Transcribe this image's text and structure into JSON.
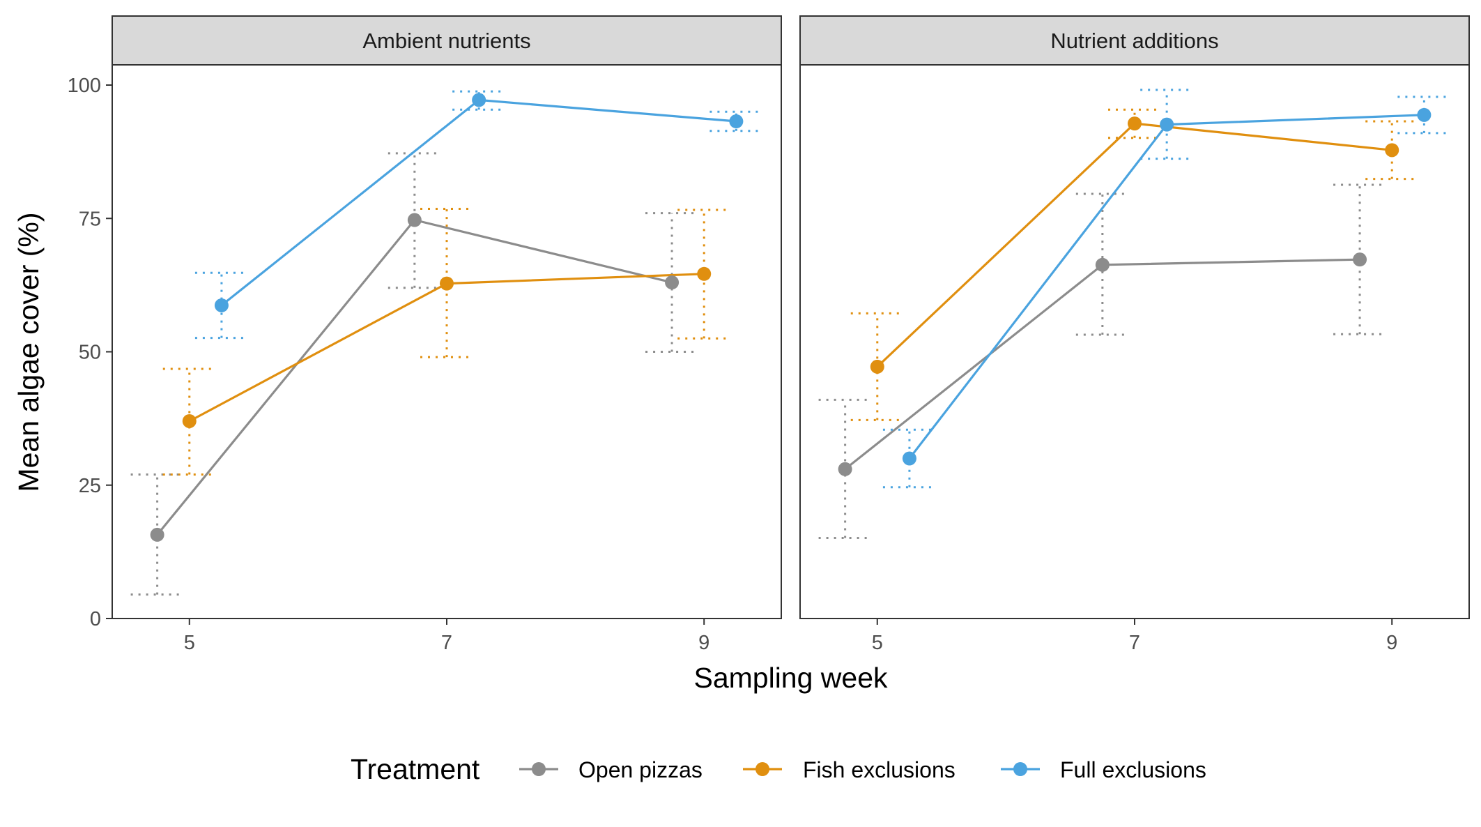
{
  "chart_data": {
    "type": "line",
    "xlabel": "Sampling week",
    "ylabel": "Mean algae cover (%)",
    "ylim": [
      0,
      100
    ],
    "xlim": [
      4.4,
      9.6
    ],
    "x_ticks": [
      5,
      7,
      9
    ],
    "y_ticks": [
      0,
      25,
      50,
      75,
      100
    ],
    "grid": false,
    "error_bars": "dotted",
    "legend": {
      "title": "Treatment",
      "placement": "bottom",
      "entries": [
        "Open pizzas",
        "Fish exclusions",
        "Full exclusions"
      ]
    },
    "series_colors": {
      "Open pizzas": "#8c8c8c",
      "Fish exclusions": "#e08f0f",
      "Full exclusions": "#4aa3df"
    },
    "dodge": {
      "Open pizzas": -0.25,
      "Fish exclusions": 0.0,
      "Full exclusions": 0.25
    },
    "panels": [
      {
        "title": "Ambient nutrients",
        "series": [
          {
            "name": "Open pizzas",
            "x": [
              5,
              7,
              9
            ],
            "y": [
              15.7,
              74.7,
              63.0
            ],
            "lower": [
              4.5,
              62.0,
              50.0
            ],
            "upper": [
              27.0,
              87.2,
              76.0
            ]
          },
          {
            "name": "Fish exclusions",
            "x": [
              5,
              7,
              9
            ],
            "y": [
              37.0,
              62.8,
              64.6
            ],
            "lower": [
              27.0,
              49.0,
              52.5
            ],
            "upper": [
              46.8,
              76.8,
              76.6
            ]
          },
          {
            "name": "Full exclusions",
            "x": [
              5,
              7,
              9
            ],
            "y": [
              58.7,
              97.2,
              93.2
            ],
            "lower": [
              52.6,
              95.4,
              91.4
            ],
            "upper": [
              64.8,
              98.8,
              95.0
            ]
          }
        ]
      },
      {
        "title": "Nutrient additions",
        "series": [
          {
            "name": "Open pizzas",
            "x": [
              5,
              7,
              9
            ],
            "y": [
              28.0,
              66.3,
              67.3
            ],
            "lower": [
              15.1,
              53.2,
              53.3
            ],
            "upper": [
              41.0,
              79.6,
              81.3
            ]
          },
          {
            "name": "Fish exclusions",
            "x": [
              5,
              7,
              9
            ],
            "y": [
              47.2,
              92.8,
              87.8
            ],
            "lower": [
              37.2,
              90.1,
              82.4
            ],
            "upper": [
              57.2,
              95.4,
              93.2
            ]
          },
          {
            "name": "Full exclusions",
            "x": [
              5,
              7,
              9
            ],
            "y": [
              30.0,
              92.6,
              94.4
            ],
            "lower": [
              24.6,
              86.2,
              91.0
            ],
            "upper": [
              35.4,
              99.1,
              97.8
            ]
          }
        ]
      }
    ]
  }
}
